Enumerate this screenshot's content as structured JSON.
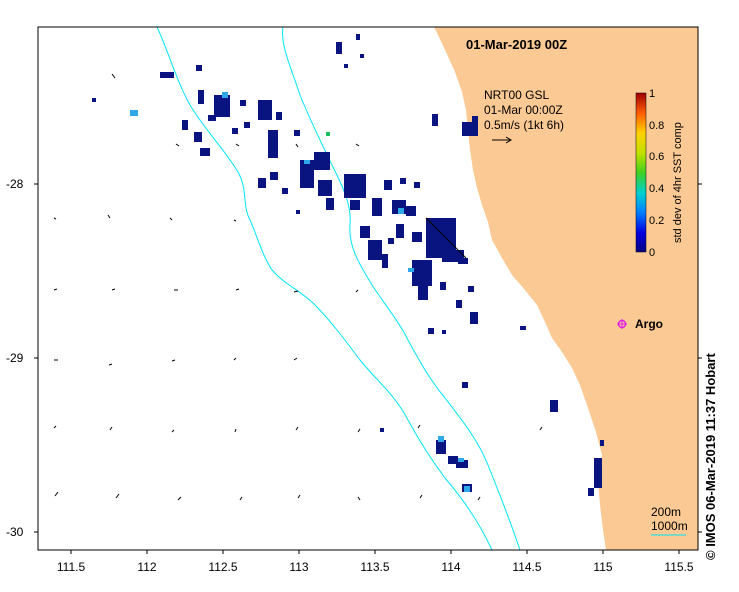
{
  "title": "01-Mar-2019 00Z",
  "product": {
    "line1": "NRT00 GSL",
    "line2": "01-Mar 00:00Z",
    "line3": "0.5m/s (1kt 6h)"
  },
  "colorbar": {
    "label": "std dev of 4hr SST comp",
    "ticks": [
      "0",
      "0.2",
      "0.4",
      "0.6",
      "0.8",
      "1"
    ]
  },
  "legend": {
    "argo_label": "Argo",
    "contour_200": "200m",
    "contour_1000": "1000m"
  },
  "credit": "© IMOS 06-Mar-2019 11:37 Hobart",
  "axes": {
    "x_ticks": [
      "111.5",
      "112",
      "112.5",
      "113",
      "113.5",
      "114",
      "114.5",
      "115",
      "115.5"
    ],
    "y_ticks": [
      "-28",
      "-29",
      "-30"
    ]
  },
  "colors": {
    "land": "#FBC994",
    "bathy": "#00E5F5",
    "sst_low": "#0A1480",
    "argo": "#E020E0"
  }
}
